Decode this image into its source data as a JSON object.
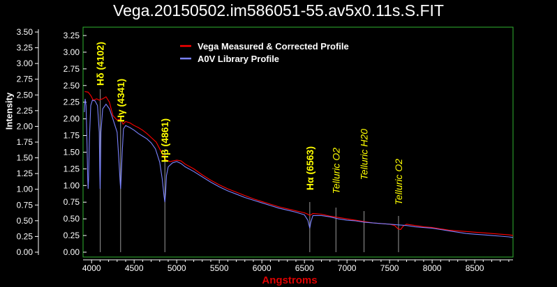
{
  "chart_data": {
    "type": "line",
    "title": "Vega.20150502.im586051-55.av5x0.11s.S.FIT",
    "xlabel": "Angstroms",
    "ylabel": "Intensity",
    "xlim": [
      3900,
      8950
    ],
    "ylim": [
      0,
      3.5
    ],
    "xticks": [
      4000,
      4500,
      5000,
      5500,
      6000,
      6500,
      7000,
      7500,
      8000,
      8500
    ],
    "yticks_outer": [
      "0.00",
      "0.25",
      "0.50",
      "0.75",
      "1.00",
      "1.25",
      "1.50",
      "1.75",
      "2.00",
      "2.25",
      "2.50",
      "2.75",
      "3.00",
      "3.25",
      "3.50"
    ],
    "yticks_inner": [
      "0.00",
      "0.25",
      "0.50",
      "0.75",
      "1.00",
      "1.25",
      "1.50",
      "1.75",
      "2.00",
      "2.25",
      "2.50",
      "2.75",
      "3.00",
      "3.25"
    ],
    "grid": false,
    "legend_position": "top-center",
    "series": [
      {
        "name": "Vega Measured & Corrected Profile",
        "color": "#ff0000",
        "points": [
          [
            3920,
            2.41
          ],
          [
            3960,
            2.4
          ],
          [
            3990,
            2.35
          ],
          [
            4020,
            2.28
          ],
          [
            4060,
            2.3
          ],
          [
            4090,
            2.28
          ],
          [
            4102,
            2.29
          ],
          [
            4130,
            2.3
          ],
          [
            4170,
            2.33
          ],
          [
            4210,
            2.25
          ],
          [
            4250,
            2.05
          ],
          [
            4300,
            1.98
          ],
          [
            4341,
            2.0
          ],
          [
            4370,
            1.92
          ],
          [
            4400,
            1.96
          ],
          [
            4450,
            1.94
          ],
          [
            4500,
            1.9
          ],
          [
            4550,
            1.87
          ],
          [
            4600,
            1.83
          ],
          [
            4650,
            1.78
          ],
          [
            4700,
            1.72
          ],
          [
            4760,
            1.65
          ],
          [
            4800,
            1.55
          ],
          [
            4840,
            1.45
          ],
          [
            4861,
            1.4
          ],
          [
            4880,
            1.38
          ],
          [
            4920,
            1.36
          ],
          [
            5000,
            1.38
          ],
          [
            5050,
            1.37
          ],
          [
            5100,
            1.32
          ],
          [
            5200,
            1.25
          ],
          [
            5300,
            1.16
          ],
          [
            5400,
            1.08
          ],
          [
            5500,
            1.01
          ],
          [
            5600,
            0.95
          ],
          [
            5700,
            0.9
          ],
          [
            5800,
            0.85
          ],
          [
            5900,
            0.8
          ],
          [
            6000,
            0.76
          ],
          [
            6100,
            0.72
          ],
          [
            6200,
            0.68
          ],
          [
            6300,
            0.65
          ],
          [
            6400,
            0.62
          ],
          [
            6500,
            0.59
          ],
          [
            6540,
            0.57
          ],
          [
            6563,
            0.55
          ],
          [
            6600,
            0.58
          ],
          [
            6700,
            0.57
          ],
          [
            6800,
            0.54
          ],
          [
            6900,
            0.52
          ],
          [
            7000,
            0.5
          ],
          [
            7100,
            0.48
          ],
          [
            7200,
            0.46
          ],
          [
            7300,
            0.44
          ],
          [
            7400,
            0.43
          ],
          [
            7500,
            0.42
          ],
          [
            7560,
            0.4
          ],
          [
            7600,
            0.35
          ],
          [
            7630,
            0.34
          ],
          [
            7660,
            0.39
          ],
          [
            7700,
            0.42
          ],
          [
            7800,
            0.4
          ],
          [
            7900,
            0.38
          ],
          [
            8000,
            0.37
          ],
          [
            8100,
            0.35
          ],
          [
            8200,
            0.33
          ],
          [
            8300,
            0.32
          ],
          [
            8400,
            0.31
          ],
          [
            8500,
            0.3
          ],
          [
            8600,
            0.29
          ],
          [
            8700,
            0.28
          ],
          [
            8800,
            0.27
          ],
          [
            8900,
            0.26
          ],
          [
            8950,
            0.25
          ]
        ]
      },
      {
        "name": "A0V Library Profile",
        "color": "#7a82ff",
        "points": [
          [
            3915,
            2.1
          ],
          [
            3925,
            2.3
          ],
          [
            3935,
            2.2
          ],
          [
            3945,
            1.7
          ],
          [
            3955,
            1.1
          ],
          [
            3960,
            0.95
          ],
          [
            3965,
            1.1
          ],
          [
            3975,
            1.7
          ],
          [
            3990,
            2.2
          ],
          [
            4010,
            2.28
          ],
          [
            4040,
            2.27
          ],
          [
            4070,
            2.2
          ],
          [
            4090,
            1.8
          ],
          [
            4095,
            1.3
          ],
          [
            4100,
            0.95
          ],
          [
            4105,
            1.3
          ],
          [
            4110,
            1.8
          ],
          [
            4130,
            2.15
          ],
          [
            4170,
            2.22
          ],
          [
            4210,
            2.15
          ],
          [
            4250,
            2.0
          ],
          [
            4300,
            1.8
          ],
          [
            4320,
            1.4
          ],
          [
            4335,
            1.05
          ],
          [
            4341,
            0.95
          ],
          [
            4347,
            1.1
          ],
          [
            4360,
            1.5
          ],
          [
            4375,
            1.85
          ],
          [
            4400,
            1.9
          ],
          [
            4450,
            1.87
          ],
          [
            4500,
            1.83
          ],
          [
            4550,
            1.78
          ],
          [
            4600,
            1.74
          ],
          [
            4650,
            1.7
          ],
          [
            4700,
            1.64
          ],
          [
            4750,
            1.55
          ],
          [
            4800,
            1.35
          ],
          [
            4830,
            1.1
          ],
          [
            4850,
            0.85
          ],
          [
            4861,
            0.75
          ],
          [
            4870,
            0.9
          ],
          [
            4880,
            1.15
          ],
          [
            4900,
            1.28
          ],
          [
            4950,
            1.34
          ],
          [
            5000,
            1.36
          ],
          [
            5050,
            1.33
          ],
          [
            5100,
            1.28
          ],
          [
            5200,
            1.21
          ],
          [
            5300,
            1.13
          ],
          [
            5400,
            1.05
          ],
          [
            5500,
            0.98
          ],
          [
            5600,
            0.92
          ],
          [
            5700,
            0.87
          ],
          [
            5800,
            0.82
          ],
          [
            5900,
            0.78
          ],
          [
            6000,
            0.74
          ],
          [
            6100,
            0.7
          ],
          [
            6200,
            0.66
          ],
          [
            6300,
            0.63
          ],
          [
            6400,
            0.6
          ],
          [
            6500,
            0.56
          ],
          [
            6540,
            0.48
          ],
          [
            6555,
            0.4
          ],
          [
            6563,
            0.36
          ],
          [
            6575,
            0.45
          ],
          [
            6600,
            0.55
          ],
          [
            6700,
            0.55
          ],
          [
            6800,
            0.53
          ],
          [
            6900,
            0.5
          ],
          [
            7000,
            0.48
          ],
          [
            7100,
            0.47
          ],
          [
            7200,
            0.45
          ],
          [
            7300,
            0.44
          ],
          [
            7400,
            0.43
          ],
          [
            7500,
            0.42
          ],
          [
            7600,
            0.41
          ],
          [
            7700,
            0.4
          ],
          [
            7800,
            0.38
          ],
          [
            7900,
            0.37
          ],
          [
            8000,
            0.36
          ],
          [
            8100,
            0.34
          ],
          [
            8200,
            0.32
          ],
          [
            8300,
            0.3
          ],
          [
            8400,
            0.28
          ],
          [
            8500,
            0.27
          ],
          [
            8600,
            0.26
          ],
          [
            8700,
            0.25
          ],
          [
            8800,
            0.24
          ],
          [
            8900,
            0.23
          ],
          [
            8950,
            0.22
          ]
        ]
      }
    ],
    "annotations": [
      {
        "label": "Hδ (4102)",
        "x": 4102,
        "y": 0.0,
        "style": "bold"
      },
      {
        "label": "Hγ (4341)",
        "x": 4341,
        "y": 0.0,
        "style": "bold"
      },
      {
        "label": "Hβ (4861)",
        "x": 4861,
        "y": 0.0,
        "style": "bold"
      },
      {
        "label": "Hα (6563)",
        "x": 6563,
        "y": 0.0,
        "style": "bold"
      },
      {
        "label": "Telluric O2",
        "x": 6870,
        "y": 0.0,
        "style": "italic"
      },
      {
        "label": "Telluric H20",
        "x": 7200,
        "y": 0.0,
        "style": "italic"
      },
      {
        "label": "Telluric O2",
        "x": 7605,
        "y": 0.0,
        "style": "italic"
      }
    ]
  }
}
